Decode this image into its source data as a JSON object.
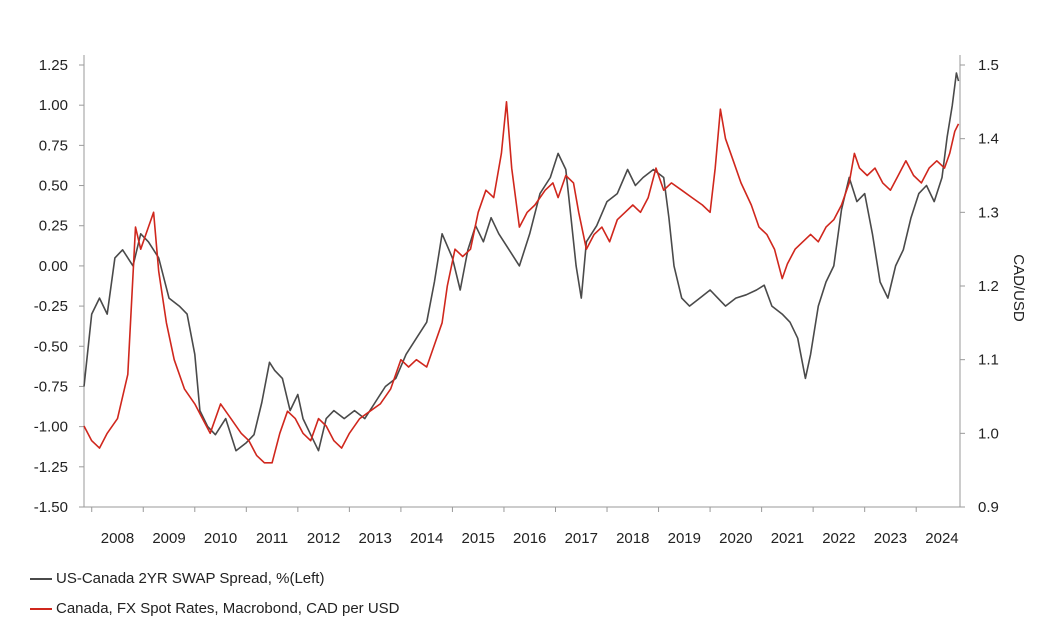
{
  "chart_data": {
    "type": "line",
    "xlabel": "",
    "ylabel_left": "",
    "ylabel_right": "CAD/USD",
    "x_ticks": [
      "2008",
      "2009",
      "2010",
      "2011",
      "2012",
      "2013",
      "2014",
      "2015",
      "2016",
      "2017",
      "2018",
      "2019",
      "2020",
      "2021",
      "2022",
      "2023",
      "2024"
    ],
    "x_range": [
      2007.85,
      2024.85
    ],
    "y_left": {
      "lim": [
        -1.5,
        1.25
      ],
      "ticks": [
        "-1.50",
        "-1.25",
        "-1.00",
        "-0.75",
        "-0.50",
        "-0.25",
        "0.00",
        "0.25",
        "0.50",
        "0.75",
        "1.00",
        "1.25"
      ]
    },
    "y_right": {
      "lim": [
        0.9,
        1.5
      ],
      "ticks": [
        "0.9",
        "1.0",
        "1.1",
        "1.2",
        "1.3",
        "1.4",
        "1.5"
      ]
    },
    "grid": false,
    "legend_position": "bottom-left",
    "series": [
      {
        "name": "US-Canada 2YR SWAP Spread, %(Left)",
        "axis": "left",
        "color": "#4a4a4a",
        "points": [
          [
            2007.85,
            -0.75
          ],
          [
            2008.0,
            -0.3
          ],
          [
            2008.15,
            -0.2
          ],
          [
            2008.3,
            -0.3
          ],
          [
            2008.45,
            0.05
          ],
          [
            2008.6,
            0.1
          ],
          [
            2008.8,
            0.0
          ],
          [
            2008.95,
            0.2
          ],
          [
            2009.1,
            0.15
          ],
          [
            2009.3,
            0.05
          ],
          [
            2009.5,
            -0.2
          ],
          [
            2009.7,
            -0.25
          ],
          [
            2009.85,
            -0.3
          ],
          [
            2010.0,
            -0.55
          ],
          [
            2010.1,
            -0.9
          ],
          [
            2010.25,
            -1.0
          ],
          [
            2010.4,
            -1.05
          ],
          [
            2010.6,
            -0.95
          ],
          [
            2010.8,
            -1.15
          ],
          [
            2011.0,
            -1.1
          ],
          [
            2011.15,
            -1.05
          ],
          [
            2011.3,
            -0.85
          ],
          [
            2011.45,
            -0.6
          ],
          [
            2011.55,
            -0.65
          ],
          [
            2011.7,
            -0.7
          ],
          [
            2011.85,
            -0.9
          ],
          [
            2012.0,
            -0.8
          ],
          [
            2012.1,
            -0.95
          ],
          [
            2012.25,
            -1.05
          ],
          [
            2012.4,
            -1.15
          ],
          [
            2012.55,
            -0.95
          ],
          [
            2012.7,
            -0.9
          ],
          [
            2012.9,
            -0.95
          ],
          [
            2013.1,
            -0.9
          ],
          [
            2013.3,
            -0.95
          ],
          [
            2013.5,
            -0.85
          ],
          [
            2013.7,
            -0.75
          ],
          [
            2013.9,
            -0.7
          ],
          [
            2014.1,
            -0.55
          ],
          [
            2014.3,
            -0.45
          ],
          [
            2014.5,
            -0.35
          ],
          [
            2014.65,
            -0.1
          ],
          [
            2014.8,
            0.2
          ],
          [
            2015.0,
            0.05
          ],
          [
            2015.15,
            -0.15
          ],
          [
            2015.3,
            0.1
          ],
          [
            2015.45,
            0.25
          ],
          [
            2015.6,
            0.15
          ],
          [
            2015.75,
            0.3
          ],
          [
            2015.9,
            0.2
          ],
          [
            2016.1,
            0.1
          ],
          [
            2016.3,
            0.0
          ],
          [
            2016.5,
            0.2
          ],
          [
            2016.7,
            0.45
          ],
          [
            2016.9,
            0.55
          ],
          [
            2017.05,
            0.7
          ],
          [
            2017.2,
            0.6
          ],
          [
            2017.3,
            0.3
          ],
          [
            2017.4,
            0.0
          ],
          [
            2017.5,
            -0.2
          ],
          [
            2017.6,
            0.15
          ],
          [
            2017.8,
            0.25
          ],
          [
            2018.0,
            0.4
          ],
          [
            2018.2,
            0.45
          ],
          [
            2018.4,
            0.6
          ],
          [
            2018.55,
            0.5
          ],
          [
            2018.7,
            0.55
          ],
          [
            2018.9,
            0.6
          ],
          [
            2019.1,
            0.55
          ],
          [
            2019.2,
            0.3
          ],
          [
            2019.3,
            0.0
          ],
          [
            2019.45,
            -0.2
          ],
          [
            2019.6,
            -0.25
          ],
          [
            2019.8,
            -0.2
          ],
          [
            2020.0,
            -0.15
          ],
          [
            2020.15,
            -0.2
          ],
          [
            2020.3,
            -0.25
          ],
          [
            2020.5,
            -0.2
          ],
          [
            2020.7,
            -0.18
          ],
          [
            2020.9,
            -0.15
          ],
          [
            2021.05,
            -0.12
          ],
          [
            2021.2,
            -0.25
          ],
          [
            2021.4,
            -0.3
          ],
          [
            2021.55,
            -0.35
          ],
          [
            2021.7,
            -0.45
          ],
          [
            2021.85,
            -0.7
          ],
          [
            2021.95,
            -0.55
          ],
          [
            2022.1,
            -0.25
          ],
          [
            2022.25,
            -0.1
          ],
          [
            2022.4,
            0.0
          ],
          [
            2022.55,
            0.35
          ],
          [
            2022.7,
            0.55
          ],
          [
            2022.85,
            0.4
          ],
          [
            2023.0,
            0.45
          ],
          [
            2023.15,
            0.2
          ],
          [
            2023.3,
            -0.1
          ],
          [
            2023.45,
            -0.2
          ],
          [
            2023.6,
            0.0
          ],
          [
            2023.75,
            0.1
          ],
          [
            2023.9,
            0.3
          ],
          [
            2024.05,
            0.45
          ],
          [
            2024.2,
            0.5
          ],
          [
            2024.35,
            0.4
          ],
          [
            2024.5,
            0.55
          ],
          [
            2024.6,
            0.8
          ],
          [
            2024.7,
            1.0
          ],
          [
            2024.78,
            1.2
          ],
          [
            2024.82,
            1.15
          ]
        ]
      },
      {
        "name": "Canada, FX Spot Rates, Macrobond, CAD per USD",
        "axis": "right",
        "color": "#d0271d",
        "points": [
          [
            2007.85,
            1.01
          ],
          [
            2008.0,
            0.99
          ],
          [
            2008.15,
            0.98
          ],
          [
            2008.3,
            1.0
          ],
          [
            2008.5,
            1.02
          ],
          [
            2008.7,
            1.08
          ],
          [
            2008.85,
            1.28
          ],
          [
            2008.95,
            1.25
          ],
          [
            2009.1,
            1.28
          ],
          [
            2009.2,
            1.3
          ],
          [
            2009.3,
            1.22
          ],
          [
            2009.45,
            1.15
          ],
          [
            2009.6,
            1.1
          ],
          [
            2009.8,
            1.06
          ],
          [
            2010.0,
            1.04
          ],
          [
            2010.15,
            1.02
          ],
          [
            2010.3,
            1.0
          ],
          [
            2010.5,
            1.04
          ],
          [
            2010.7,
            1.02
          ],
          [
            2010.9,
            1.0
          ],
          [
            2011.05,
            0.99
          ],
          [
            2011.2,
            0.97
          ],
          [
            2011.35,
            0.96
          ],
          [
            2011.5,
            0.96
          ],
          [
            2011.65,
            1.0
          ],
          [
            2011.8,
            1.03
          ],
          [
            2011.95,
            1.02
          ],
          [
            2012.1,
            1.0
          ],
          [
            2012.25,
            0.99
          ],
          [
            2012.4,
            1.02
          ],
          [
            2012.55,
            1.01
          ],
          [
            2012.7,
            0.99
          ],
          [
            2012.85,
            0.98
          ],
          [
            2013.0,
            1.0
          ],
          [
            2013.2,
            1.02
          ],
          [
            2013.4,
            1.03
          ],
          [
            2013.6,
            1.04
          ],
          [
            2013.8,
            1.06
          ],
          [
            2014.0,
            1.1
          ],
          [
            2014.15,
            1.09
          ],
          [
            2014.3,
            1.1
          ],
          [
            2014.5,
            1.09
          ],
          [
            2014.65,
            1.12
          ],
          [
            2014.8,
            1.15
          ],
          [
            2014.9,
            1.2
          ],
          [
            2015.05,
            1.25
          ],
          [
            2015.2,
            1.24
          ],
          [
            2015.35,
            1.25
          ],
          [
            2015.5,
            1.3
          ],
          [
            2015.65,
            1.33
          ],
          [
            2015.8,
            1.32
          ],
          [
            2015.95,
            1.38
          ],
          [
            2016.05,
            1.45
          ],
          [
            2016.15,
            1.36
          ],
          [
            2016.3,
            1.28
          ],
          [
            2016.45,
            1.3
          ],
          [
            2016.6,
            1.31
          ],
          [
            2016.8,
            1.33
          ],
          [
            2016.95,
            1.34
          ],
          [
            2017.05,
            1.32
          ],
          [
            2017.2,
            1.35
          ],
          [
            2017.35,
            1.34
          ],
          [
            2017.45,
            1.3
          ],
          [
            2017.6,
            1.25
          ],
          [
            2017.75,
            1.27
          ],
          [
            2017.9,
            1.28
          ],
          [
            2018.05,
            1.26
          ],
          [
            2018.2,
            1.29
          ],
          [
            2018.35,
            1.3
          ],
          [
            2018.5,
            1.31
          ],
          [
            2018.65,
            1.3
          ],
          [
            2018.8,
            1.32
          ],
          [
            2018.95,
            1.36
          ],
          [
            2019.1,
            1.33
          ],
          [
            2019.25,
            1.34
          ],
          [
            2019.45,
            1.33
          ],
          [
            2019.65,
            1.32
          ],
          [
            2019.85,
            1.31
          ],
          [
            2020.0,
            1.3
          ],
          [
            2020.1,
            1.36
          ],
          [
            2020.2,
            1.44
          ],
          [
            2020.3,
            1.4
          ],
          [
            2020.45,
            1.37
          ],
          [
            2020.6,
            1.34
          ],
          [
            2020.8,
            1.31
          ],
          [
            2020.95,
            1.28
          ],
          [
            2021.1,
            1.27
          ],
          [
            2021.25,
            1.25
          ],
          [
            2021.4,
            1.21
          ],
          [
            2021.5,
            1.23
          ],
          [
            2021.65,
            1.25
          ],
          [
            2021.8,
            1.26
          ],
          [
            2021.95,
            1.27
          ],
          [
            2022.1,
            1.26
          ],
          [
            2022.25,
            1.28
          ],
          [
            2022.4,
            1.29
          ],
          [
            2022.55,
            1.31
          ],
          [
            2022.7,
            1.34
          ],
          [
            2022.8,
            1.38
          ],
          [
            2022.9,
            1.36
          ],
          [
            2023.05,
            1.35
          ],
          [
            2023.2,
            1.36
          ],
          [
            2023.35,
            1.34
          ],
          [
            2023.5,
            1.33
          ],
          [
            2023.65,
            1.35
          ],
          [
            2023.8,
            1.37
          ],
          [
            2023.95,
            1.35
          ],
          [
            2024.1,
            1.34
          ],
          [
            2024.25,
            1.36
          ],
          [
            2024.4,
            1.37
          ],
          [
            2024.55,
            1.36
          ],
          [
            2024.65,
            1.38
          ],
          [
            2024.75,
            1.41
          ],
          [
            2024.82,
            1.42
          ]
        ]
      }
    ]
  }
}
